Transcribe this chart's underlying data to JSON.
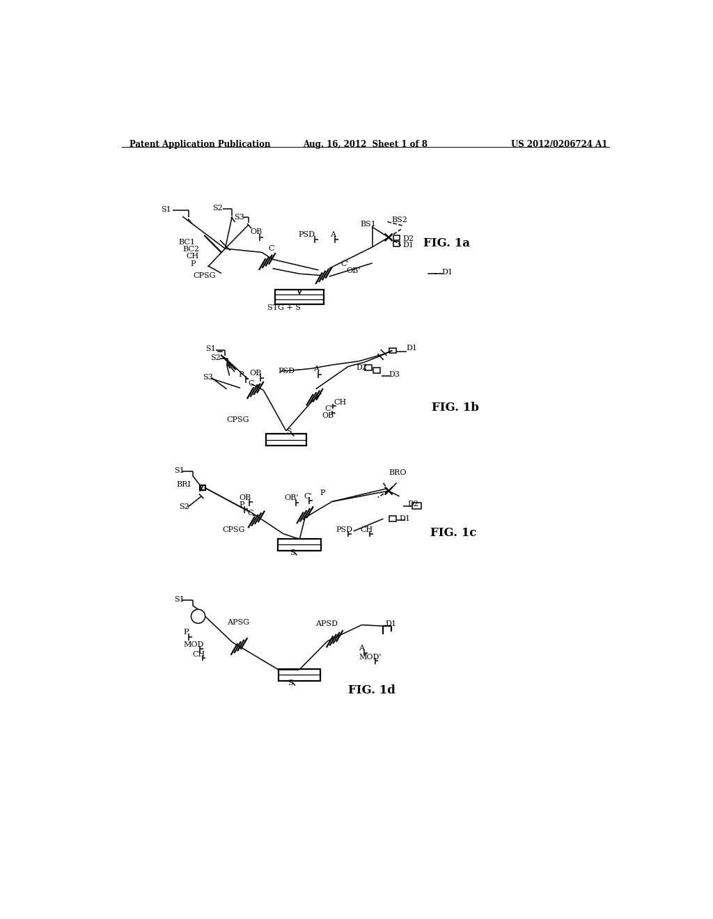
{
  "background": "#ffffff",
  "header_left": "Patent Application Publication",
  "header_center": "Aug. 16, 2012  Sheet 1 of 8",
  "header_right": "US 2012/0206724 A1",
  "fig1a_label": "FIG. 1a",
  "fig1b_label": "FIG. 1b",
  "fig1c_label": "FIG. 1c",
  "fig1d_label": "FIG. 1d"
}
